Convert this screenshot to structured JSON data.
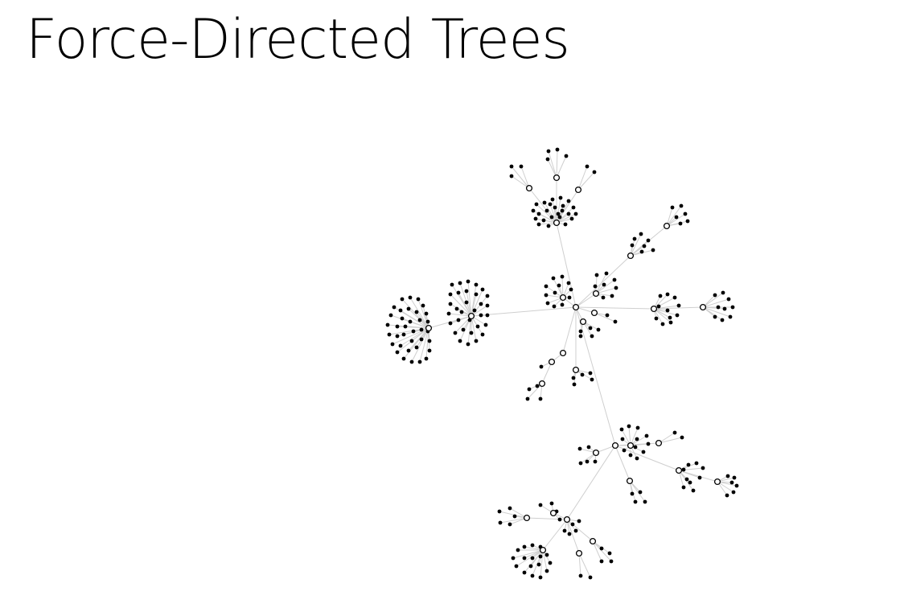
{
  "header": {
    "title": "Force-Directed Trees"
  },
  "colors": {
    "background": "#ffffff",
    "link": "#cfcfcf",
    "node": "#000000",
    "branch_fill": "#ffffff"
  }
}
